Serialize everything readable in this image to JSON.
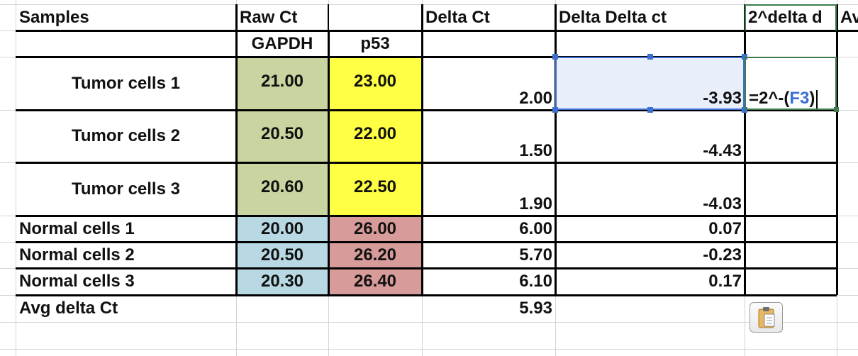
{
  "header_row": [
    "Samples",
    "Raw Ct",
    "",
    "Delta Ct",
    "Delta Delta ct",
    "2^delta d",
    "Av"
  ],
  "subheader_row": [
    "",
    "GAPDH",
    "p53",
    "",
    "",
    "",
    ""
  ],
  "rows": [
    {
      "sample": "Tumor cells 1",
      "gapdh": "21.00",
      "p53": "23.00",
      "delta_ct": "2.00",
      "delta_delta_ct": "-3.93",
      "col_f": ""
    },
    {
      "sample": "Tumor cells 2",
      "gapdh": "20.50",
      "p53": "22.00",
      "delta_ct": "1.50",
      "delta_delta_ct": "-4.43",
      "col_f": ""
    },
    {
      "sample": "Tumor cells 3",
      "gapdh": "20.60",
      "p53": "22.50",
      "delta_ct": "1.90",
      "delta_delta_ct": "-4.03",
      "col_f": ""
    },
    {
      "sample": "Normal cells 1",
      "gapdh": "20.00",
      "p53": "26.00",
      "delta_ct": "6.00",
      "delta_delta_ct": "0.07",
      "col_f": ""
    },
    {
      "sample": "Normal cells 2",
      "gapdh": "20.50",
      "p53": "26.20",
      "delta_ct": "5.70",
      "delta_delta_ct": "-0.23",
      "col_f": ""
    },
    {
      "sample": "Normal cells 3",
      "gapdh": "20.30",
      "p53": "26.40",
      "delta_ct": "6.10",
      "delta_delta_ct": "0.17",
      "col_f": ""
    }
  ],
  "avg_row": {
    "label": "Avg delta Ct",
    "delta_ct": "5.93"
  },
  "editing": {
    "prefix": "=2^-(",
    "ref": "F3",
    "suffix": ")"
  },
  "colors": {
    "gapdh_tumor": "#c8d5a0",
    "p53_tumor": "#ffff44",
    "gapdh_normal": "#b8d9e3",
    "p53_normal": "#d79b99",
    "selection_fill": "#e9eefb",
    "selection_border": "#3d6fd1",
    "edit_border": "#3f7b4c",
    "reference_text": "#3a6fd8"
  },
  "icons": {
    "paste_options": "clipboard-icon"
  }
}
